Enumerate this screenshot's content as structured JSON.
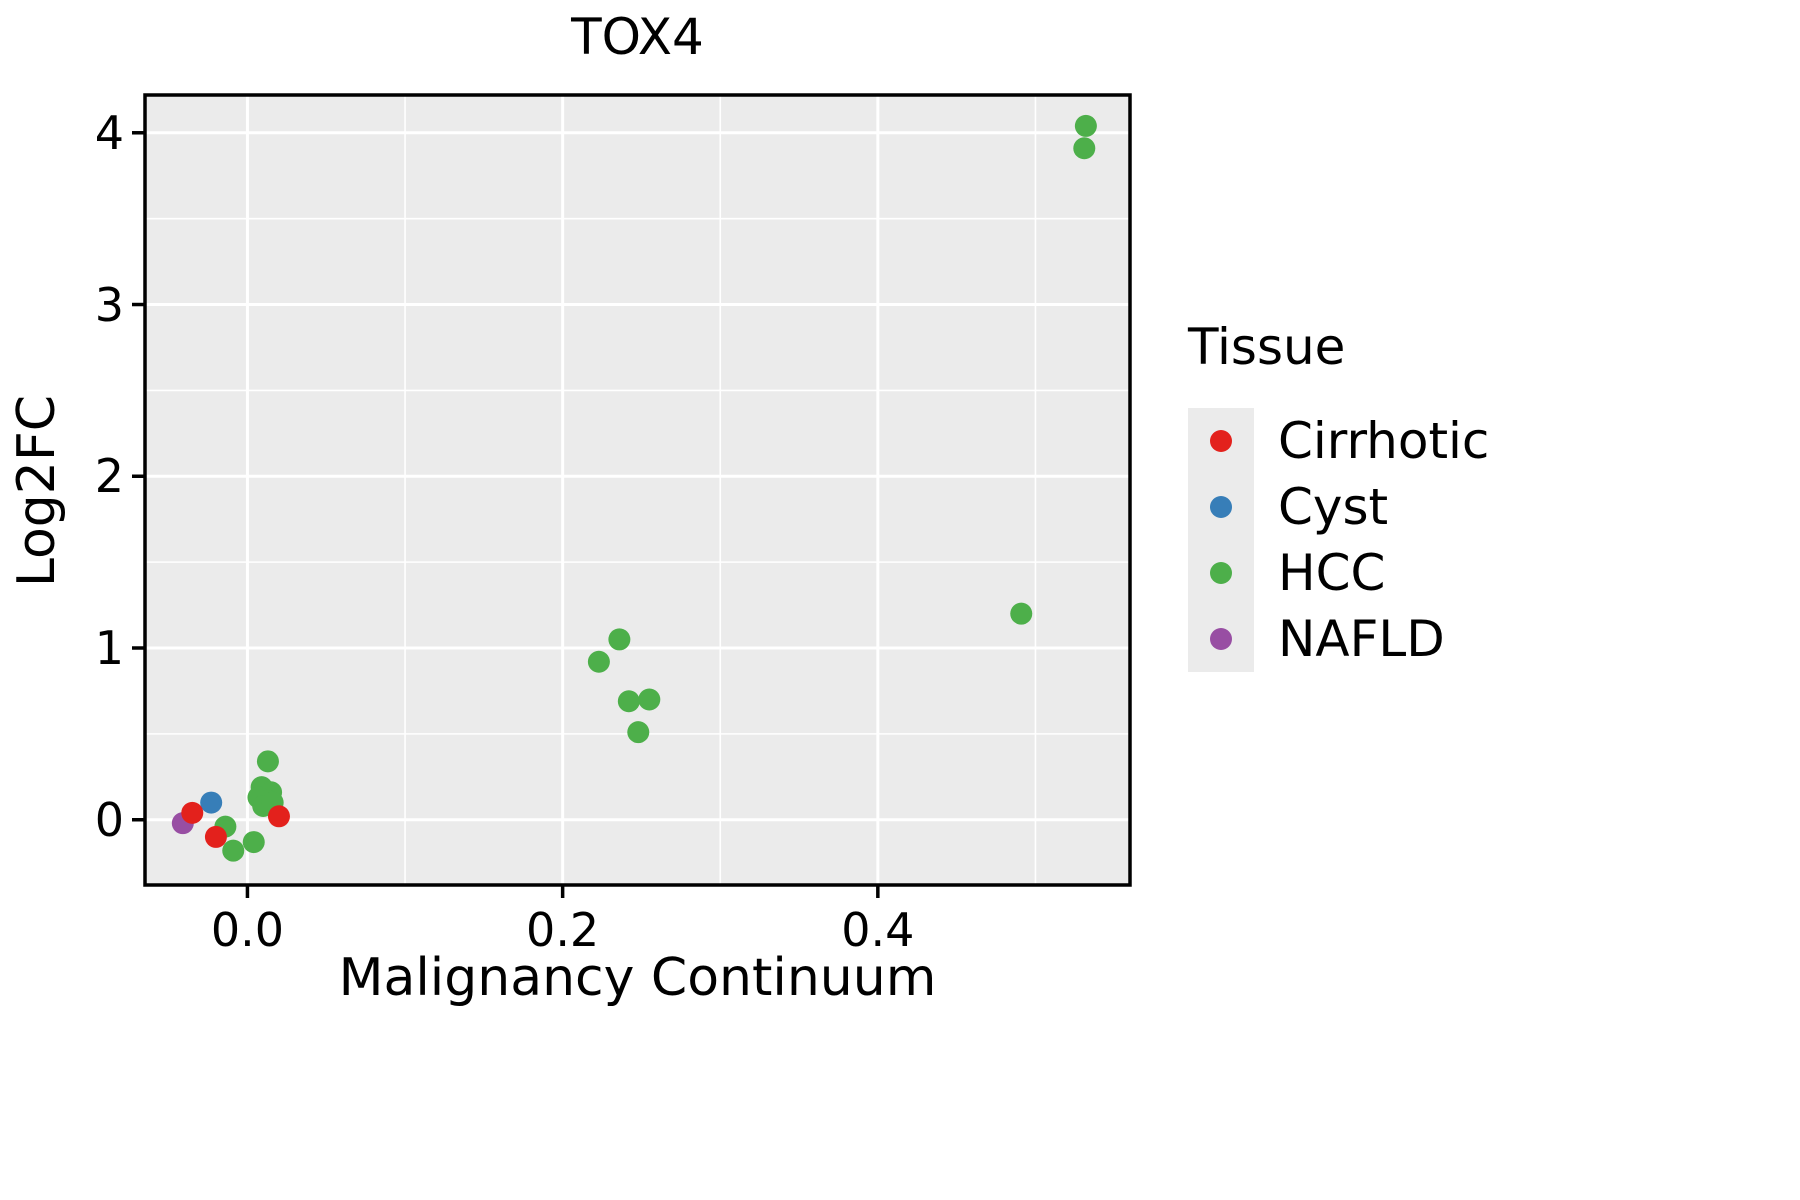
{
  "title": "TOX4",
  "axes": {
    "xlabel": "Malignancy Continuum",
    "ylabel": "Log2FC"
  },
  "legend": {
    "title": "Tissue",
    "entries": [
      {
        "label": "Cirrhotic",
        "color": "#E3211C"
      },
      {
        "label": "Cyst",
        "color": "#377EB8"
      },
      {
        "label": "HCC",
        "color": "#4DAF4A"
      },
      {
        "label": "NAFLD",
        "color": "#984EA3"
      }
    ]
  },
  "chart_data": {
    "type": "scatter",
    "title": "TOX4",
    "xlabel": "Malignancy Continuum",
    "ylabel": "Log2FC",
    "xlim": [
      -0.065,
      0.56
    ],
    "ylim": [
      -0.38,
      4.22
    ],
    "x_tick_values": [
      0.0,
      0.2,
      0.4
    ],
    "x_tick_labels": [
      "0.0",
      "0.2",
      "0.4"
    ],
    "y_tick_values": [
      0,
      1,
      2,
      3,
      4
    ],
    "y_tick_labels": [
      "0",
      "1",
      "2",
      "3",
      "4"
    ],
    "x_minor_ticks": [
      0.1,
      0.3,
      0.5
    ],
    "y_minor_ticks": [
      0.5,
      1.5,
      2.5,
      3.5
    ],
    "grid": true,
    "legend_position": "right",
    "panel_bg": "#EBEBEB",
    "grid_color": "#FFFFFF",
    "border_color": "#000000",
    "point_radius": 11,
    "series": [
      {
        "name": "Cirrhotic",
        "color": "#E3211C",
        "points": [
          [
            -0.035,
            0.04
          ],
          [
            -0.02,
            -0.1
          ],
          [
            0.02,
            0.02
          ]
        ]
      },
      {
        "name": "Cyst",
        "color": "#377EB8",
        "points": [
          [
            -0.023,
            0.1
          ]
        ]
      },
      {
        "name": "HCC",
        "color": "#4DAF4A",
        "points": [
          [
            0.013,
            0.34
          ],
          [
            0.009,
            0.19
          ],
          [
            0.015,
            0.16
          ],
          [
            0.007,
            0.13
          ],
          [
            0.013,
            0.11
          ],
          [
            0.01,
            0.08
          ],
          [
            0.016,
            0.1
          ],
          [
            -0.014,
            -0.04
          ],
          [
            -0.009,
            -0.18
          ],
          [
            0.004,
            -0.13
          ],
          [
            0.223,
            0.92
          ],
          [
            0.236,
            1.05
          ],
          [
            0.242,
            0.69
          ],
          [
            0.255,
            0.7
          ],
          [
            0.248,
            0.51
          ],
          [
            0.491,
            1.2
          ],
          [
            0.532,
            4.04
          ],
          [
            0.531,
            3.91
          ]
        ]
      },
      {
        "name": "NAFLD",
        "color": "#984EA3",
        "points": [
          [
            -0.041,
            -0.02
          ]
        ]
      }
    ]
  }
}
